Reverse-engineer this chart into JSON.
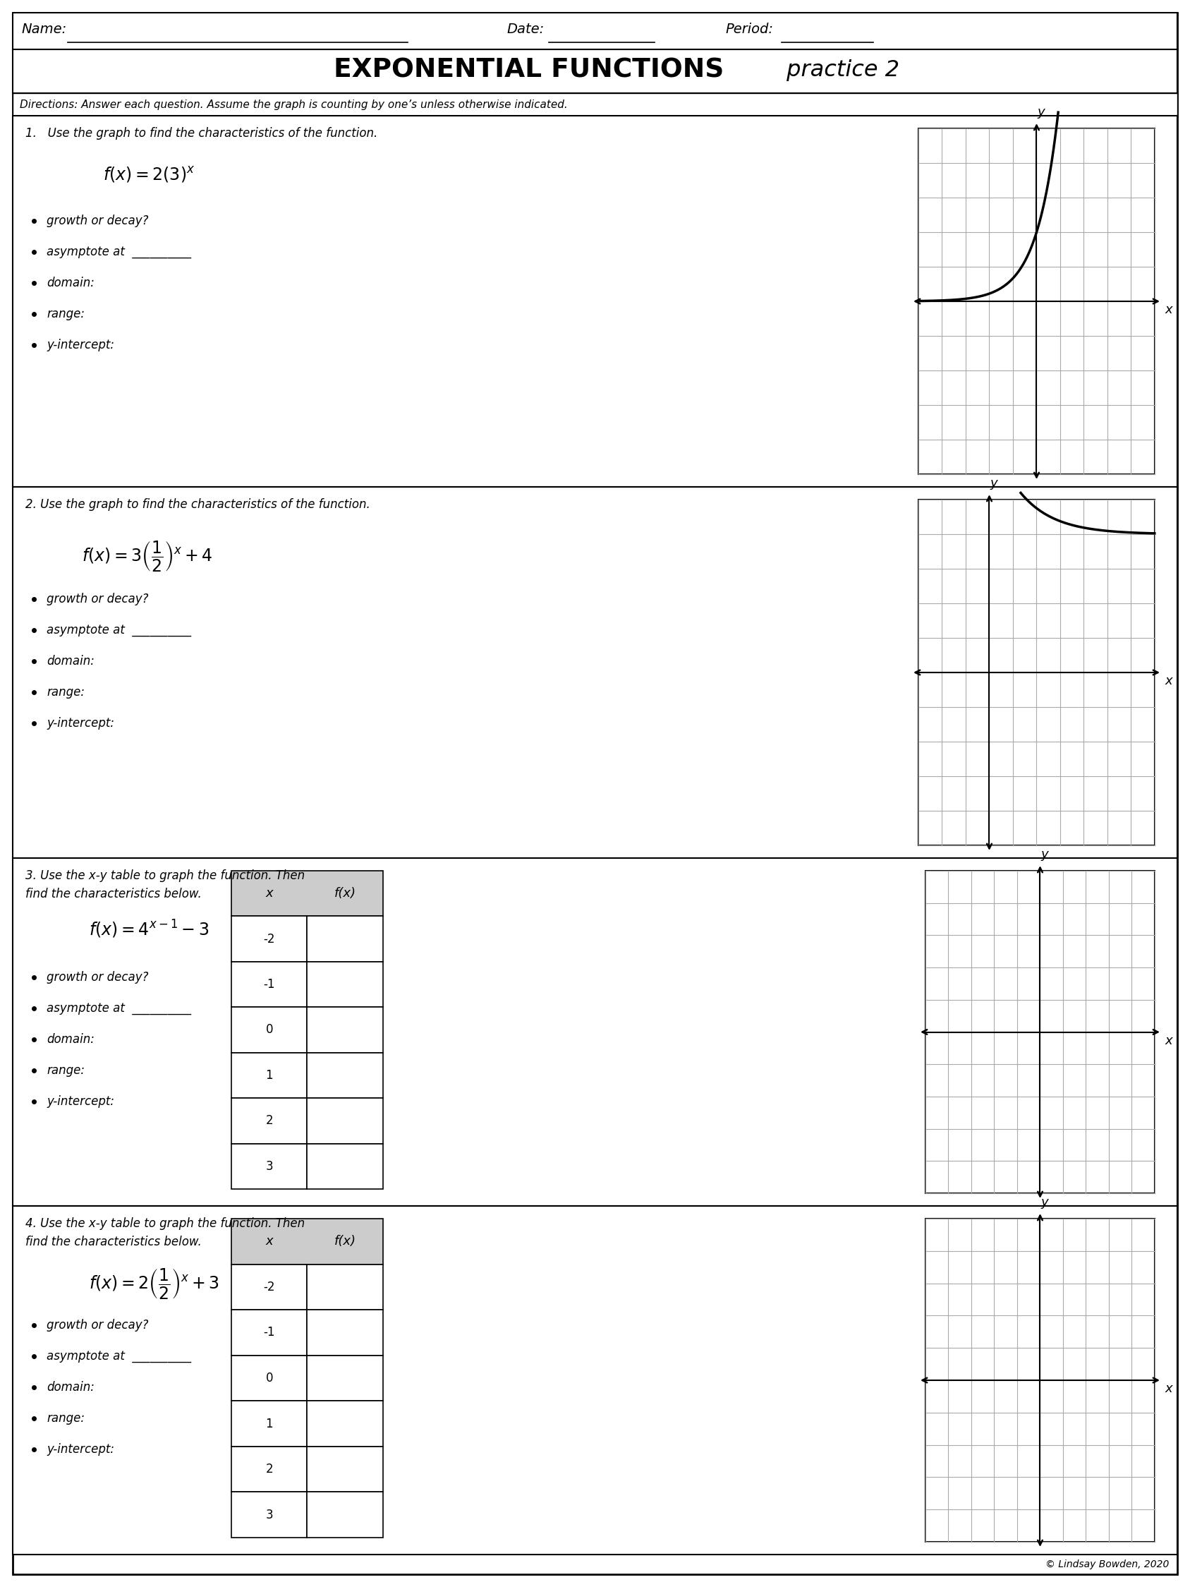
{
  "title_bold": "EXPONENTIAL FUNCTIONS",
  "title_italic": " practice 2",
  "directions": "Directions: Answer each question. Assume the graph is counting by one’s unless otherwise indicated.",
  "header_name": "Name:",
  "header_date": "Date:",
  "header_period": "Period:",
  "bg_color": "#ffffff",
  "q1_text": "1.   Use the graph to find the characteristics of the function.",
  "q1_formula": "$f(x) = 2(3)^x$",
  "q2_text": "2. Use the graph to find the characteristics of the function.",
  "q2_formula": "$f(x) = 3\\left(\\dfrac{1}{2}\\right)^x + 4$",
  "q3_text_1": "3. Use the x-y table to graph the function. Then",
  "q3_text_2": "find the characteristics below.",
  "q3_formula": "$f(x) = 4^{x-1} - 3$",
  "q4_text_1": "4. Use the x-y table to graph the function. Then",
  "q4_text_2": "find the characteristics below.",
  "q4_formula": "$f(x) = 2\\left(\\dfrac{1}{2}\\right)^x + 3$",
  "bullets": [
    "growth or decay?",
    "asymptote at  __________",
    "domain:",
    "range:",
    "y-intercept:"
  ],
  "table_x_vals": [
    "-2",
    "-1",
    "0",
    "1",
    "2",
    "3"
  ],
  "copyright": "© Lindsay Bowden, 2020"
}
